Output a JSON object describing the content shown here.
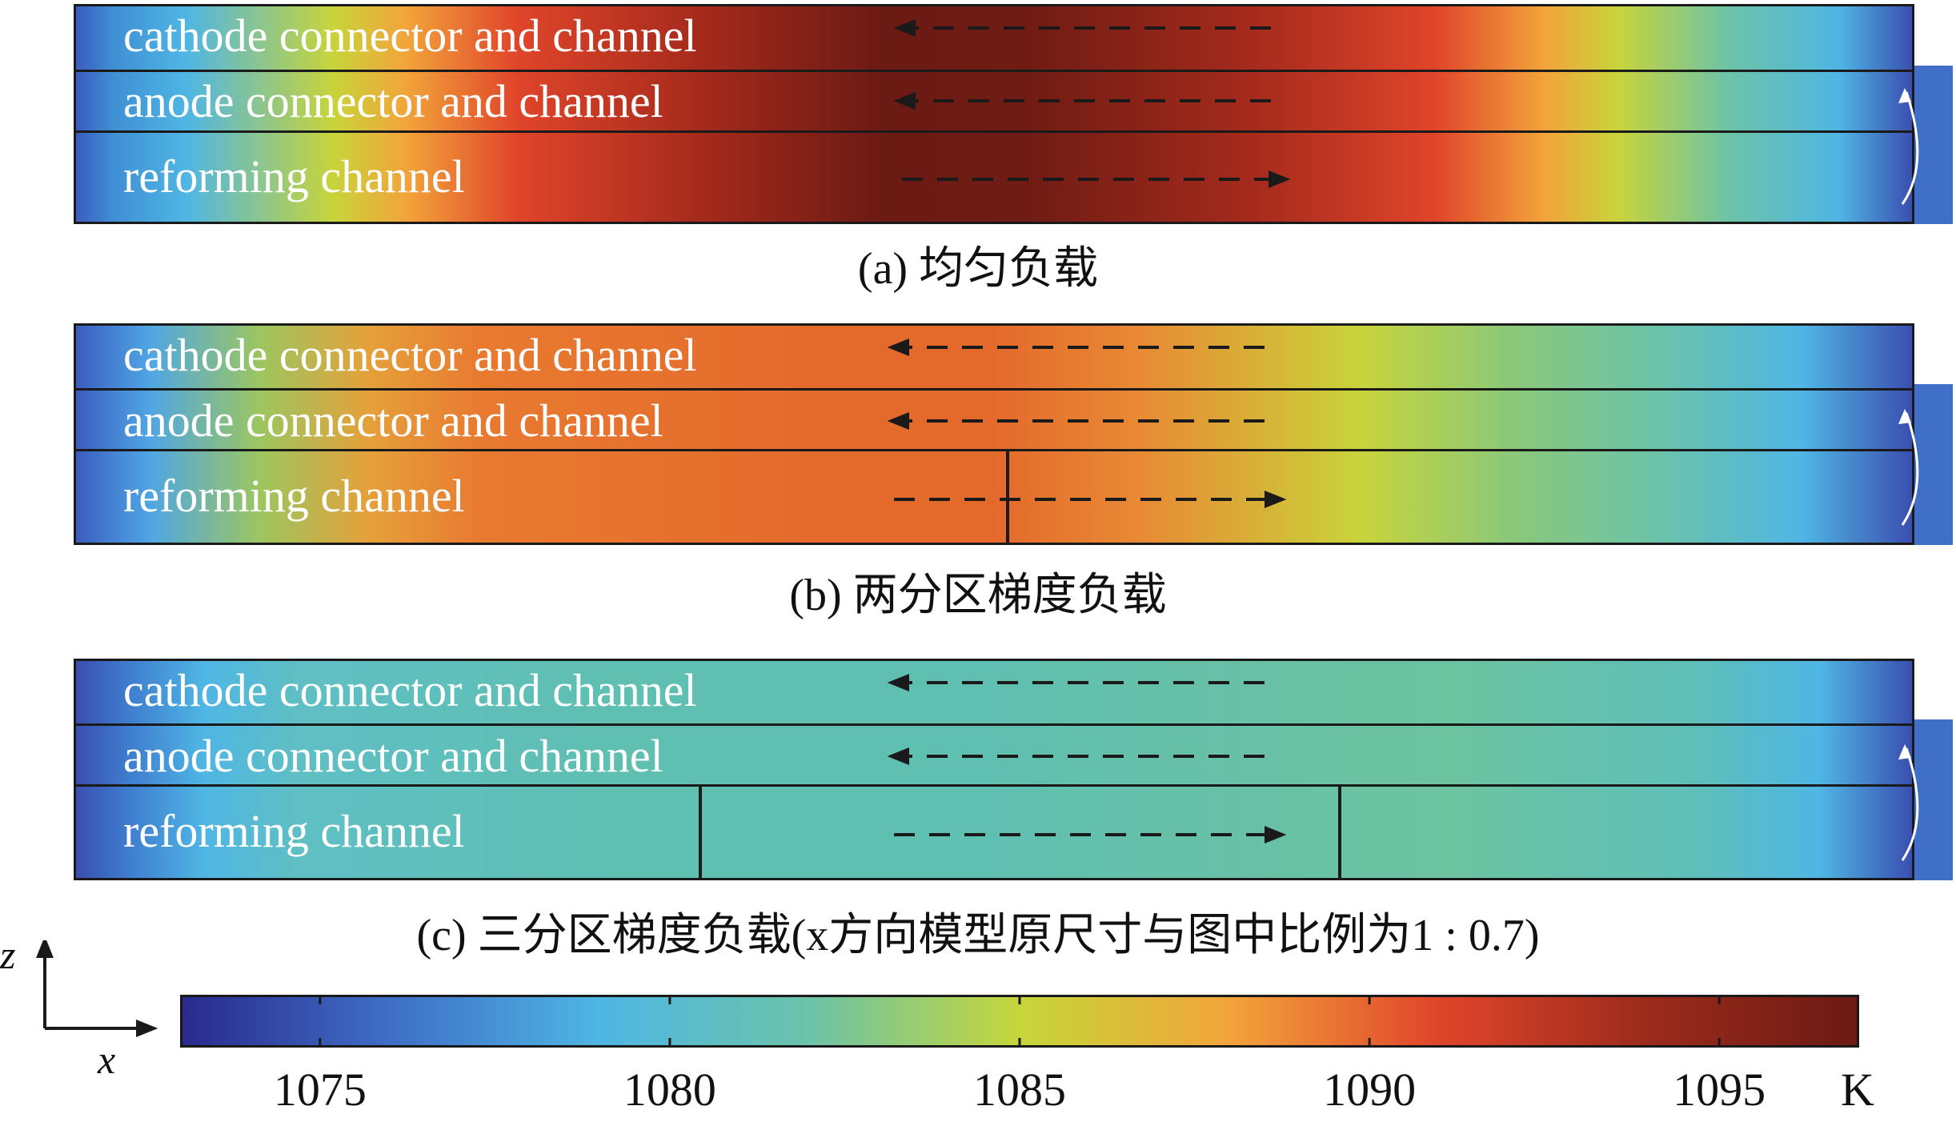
{
  "layers": {
    "cathode": "cathode connector and channel",
    "anode": "anode connector and channel",
    "reforming": "reforming channel"
  },
  "captions": {
    "a": "(a) 均匀负载",
    "b": "(b) 两分区梯度负载",
    "c": "(c) 三分区梯度负载(x方向模型原尺寸与图中比例为1 : 0.7)"
  },
  "colorbar": {
    "min": 1073,
    "max": 1097,
    "ticks": [
      "1075",
      "1080",
      "1085",
      "1090",
      "1095"
    ],
    "tick_values": [
      1075,
      1080,
      1085,
      1090,
      1095
    ],
    "unit": "K",
    "colors": [
      "#2a2a8c",
      "#3f6fc6",
      "#4fb6e4",
      "#6cc3a8",
      "#c6d63a",
      "#f2a43a",
      "#e0452a",
      "#9c2b1c",
      "#6b1a14"
    ]
  },
  "axes": {
    "vertical": "z",
    "horizontal": "x"
  },
  "colors": {
    "blue_end": "#3a4fb0",
    "dark_red": "#6b1a14",
    "orange": "#e46a2c",
    "teal": "#5fbfb0"
  }
}
